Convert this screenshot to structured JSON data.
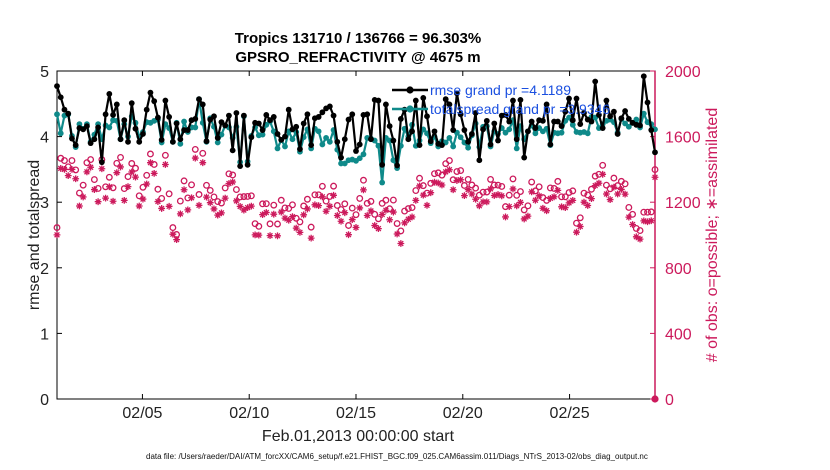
{
  "chart_data": {
    "type": "line",
    "title": "Tropics 131710 / 136766 = 96.303%",
    "subtitle": "GPSRO_REFRACTIVITY @ 4675 m",
    "xlabel": "Feb.01,2013 00:00:00 start",
    "ylabel_left": "rmse and totalspread",
    "ylabel_right": "# of obs: o=possible; ∗=assimilated",
    "footnote": "data file: /Users/raeder/DAI/ATM_forcXX/CAM6_setup/f.e21.FHIST_BGC.f09_025.CAM6assim.011/Diags_NTrS_2013-02/obs_diag_output.nc",
    "x_range": [
      1.0,
      29.0
    ],
    "ylim_left": [
      0,
      5
    ],
    "ylim_right": [
      0,
      2000
    ],
    "x_ticks": [
      5,
      10,
      15,
      20,
      25
    ],
    "x_tick_labels": [
      "02/05",
      "02/10",
      "02/15",
      "02/20",
      "02/25"
    ],
    "y_left_ticks": [
      "0",
      "1",
      "2",
      "3",
      "4",
      "5"
    ],
    "y_right_ticks": [
      "0",
      "400",
      "800",
      "1200",
      "1600",
      "2000"
    ],
    "legend": {
      "position": "top-right",
      "entries": [
        "rmse grand pr =4.1189",
        "totalspread grand pr =3.9346"
      ]
    },
    "colors": {
      "rmse": "#000000",
      "totalspread": "#0f8a8a",
      "obs": "#cc1a5c",
      "legend_text": "#1a4fe0"
    },
    "series": [
      {
        "name": "rmse",
        "axis": "left",
        "values": [
          4.77,
          4.6,
          4.41,
          4.35,
          3.97,
          3.87,
          4.13,
          4.11,
          4.16,
          3.9,
          3.96,
          4.14,
          3.61,
          4.34,
          4.65,
          4.33,
          4.49,
          3.96,
          4.25,
          3.92,
          4.51,
          4.12,
          3.92,
          4.04,
          4.41,
          4.67,
          4.54,
          4.29,
          3.95,
          4.55,
          4.3,
          3.92,
          4.2,
          3.96,
          4.1,
          4.1,
          4.25,
          4.27,
          4.57,
          4.49,
          3.93,
          4.26,
          4.31,
          3.98,
          4.22,
          4.17,
          4.32,
          3.79,
          4.36,
          3.55,
          4.32,
          3.57,
          3.99,
          4.21,
          4.2,
          4.1,
          4.33,
          4.25,
          4.3,
          4.04,
          3.95,
          4.0,
          4.41,
          4.11,
          4.15,
          3.81,
          4.2,
          4.34,
          3.87,
          4.28,
          4.3,
          4.37,
          4.43,
          4.46,
          4.32,
          3.92,
          3.68,
          3.96,
          4.26,
          4.34,
          3.78,
          3.88,
          4.33,
          4.34,
          3.96,
          4.56,
          4.55,
          3.57,
          4.49,
          4.16,
          3.94,
          3.56,
          4.27,
          4.41,
          3.96,
          4.08,
          4.55,
          3.87,
          4.59,
          4.31,
          3.93,
          4.08,
          3.89,
          3.87,
          4.57,
          4.49,
          4.1,
          4.66,
          4.34,
          4.1,
          3.92,
          4.04,
          4.36,
          3.64,
          4.11,
          4.24,
          3.88,
          4.2,
          3.94,
          4.32,
          4.33,
          4.23,
          4.55,
          3.96,
          4.56,
          3.68,
          4.08,
          4.23,
          4.13,
          4.25,
          4.24,
          4.49,
          3.88,
          4.23,
          4.23,
          4.16,
          4.38,
          4.58,
          4.25,
          4.58,
          4.19,
          4.36,
          4.26,
          4.23,
          4.84,
          4.33,
          4.13,
          4.55,
          4.31,
          4.38,
          4.04,
          4.28,
          4.39,
          4.27,
          4.21,
          4.18,
          4.17,
          4.92,
          4.52,
          4.1,
          3.76
        ]
      },
      {
        "name": "totalspread",
        "axis": "left",
        "values": [
          4.34,
          4.05,
          4.32,
          4.34,
          4.01,
          3.84,
          4.19,
          4.12,
          4.19,
          3.92,
          4.03,
          4.19,
          3.96,
          4.17,
          4.14,
          4.25,
          4.24,
          3.96,
          4.19,
          4.0,
          4.31,
          4.21,
          4.0,
          4.07,
          4.22,
          4.21,
          4.24,
          4.26,
          3.91,
          4.19,
          4.13,
          3.92,
          4.21,
          3.89,
          4.23,
          4.07,
          4.14,
          4.14,
          4.57,
          4.21,
          3.92,
          4.28,
          4.15,
          3.91,
          4.03,
          4.17,
          4.14,
          3.98,
          4.15,
          3.61,
          4.31,
          3.62,
          4.01,
          4.14,
          4.02,
          4.03,
          4.18,
          4.23,
          4.08,
          3.82,
          3.95,
          3.85,
          4.08,
          3.96,
          4.07,
          3.77,
          3.99,
          4.11,
          3.82,
          4.12,
          4.08,
          3.88,
          3.98,
          3.92,
          4.1,
          3.8,
          3.59,
          3.59,
          3.64,
          3.65,
          3.63,
          3.67,
          3.73,
          3.98,
          3.97,
          3.94,
          3.86,
          3.3,
          3.98,
          3.94,
          3.64,
          3.52,
          3.86,
          4.12,
          4.0,
          4.18,
          3.86,
          3.94,
          4.11,
          4.05,
          3.9,
          4.0,
          3.85,
          3.93,
          3.91,
          3.98,
          3.85,
          4.06,
          3.99,
          3.91,
          3.83,
          4.02,
          4.2,
          3.84,
          4.15,
          4.16,
          3.85,
          4.08,
          4.04,
          4.13,
          4.06,
          4.11,
          4.25,
          3.82,
          4.16,
          3.96,
          4.08,
          4.17,
          4.05,
          4.13,
          4.08,
          4.12,
          3.87,
          4.06,
          4.05,
          4.06,
          4.24,
          4.29,
          4.18,
          4.07,
          4.06,
          4.07,
          4.05,
          4.3,
          4.29,
          4.13,
          4.19,
          4.24,
          4.26,
          4.22,
          4.06,
          4.27,
          4.2,
          4.15,
          4.21,
          4.26,
          4.14,
          4.35,
          4.22,
          4.19,
          4.11
        ]
      },
      {
        "name": "possible",
        "axis": "right",
        "marker": "circle",
        "values": [
          1045,
          1468,
          1454,
          1416,
          1454,
          1397,
          1256,
          1304,
          1441,
          1460,
          1338,
          1284,
          1460,
          1294,
          1352,
          1288,
          1437,
          1473,
          1283,
          1356,
          1436,
          1407,
          1239,
          1291,
          1364,
          1494,
          1430,
          1279,
          1223,
          1486,
          1251,
          1045,
          1003,
          1207,
          1330,
          1226,
          1306,
          1522,
          1247,
          1498,
          1303,
          1272,
          1232,
          1204,
          1195,
          1287,
          1373,
          1366,
          1277,
          1232,
          1234,
          1235,
          1239,
          1069,
          1053,
          1190,
          1191,
          1068,
          1182,
          1067,
          1212,
          1165,
          1162,
          1184,
          1102,
          1080,
          1177,
          1218,
          1048,
          1245,
          1245,
          1297,
          1207,
          1235,
          1298,
          1180,
          1155,
          1190,
          1058,
          1164,
          1124,
          1223,
          1334,
          1193,
          1205,
          1126,
          1099,
          1193,
          1212,
          1160,
          1213,
          1070,
          1025,
          1146,
          1161,
          1167,
          1271,
          1346,
          1301,
          1255,
          1315,
          1374,
          1379,
          1365,
          1435,
          1454,
          1337,
          1387,
          1393,
          1302,
          1339,
          1305,
          1286,
          1243,
          1261,
          1262,
          1339,
          1305,
          1304,
          1296,
          1173,
          1243,
          1342,
          1242,
          1265,
          1153,
          1178,
          1323,
          1269,
          1294,
          1228,
          1211,
          1287,
          1284,
          1327,
          1233,
          1233,
          1259,
          1269,
          1072,
          1105,
          1255,
          1244,
          1279,
          1359,
          1370,
          1425,
          1304,
          1282,
          1347,
          1301,
          1327,
          1312,
          1168,
          1126,
          1040,
          1027,
          1139,
          1139,
          1141,
          1399
        ]
      },
      {
        "name": "assimilated",
        "axis": "right",
        "marker": "star",
        "values": [
          1001,
          1406,
          1400,
          1362,
          1400,
          1343,
          1177,
          1232,
          1385,
          1413,
          1277,
          1203,
          1404,
          1225,
          1294,
          1206,
          1380,
          1415,
          1211,
          1295,
          1384,
          1353,
          1177,
          1219,
          1311,
          1441,
          1376,
          1204,
          1162,
          1430,
          1175,
          1005,
          972,
          1129,
          1276,
          1153,
          1227,
          1469,
          1181,
          1441,
          1231,
          1197,
          1159,
          1121,
          1135,
          1225,
          1314,
          1323,
          1208,
          1174,
          1152,
          1167,
          1176,
          1001,
          999,
          1124,
          1137,
          996,
          1127,
          995,
          1140,
          1103,
          1090,
          1112,
          1042,
          1016,
          1123,
          1159,
          981,
          1184,
          1179,
          1233,
          1145,
          1175,
          1242,
          1119,
          1084,
          1136,
          1002,
          1094,
          1046,
          1165,
          1275,
          1119,
          1147,
          1058,
          1039,
          1125,
          1151,
          1093,
          1140,
          1006,
          948,
          1074,
          1096,
          1110,
          1211,
          1299,
          1243,
          1181,
          1258,
          1322,
          1317,
          1305,
          1385,
          1398,
          1276,
          1332,
          1337,
          1240,
          1277,
          1250,
          1218,
          1178,
          1202,
          1202,
          1281,
          1241,
          1247,
          1239,
          1110,
          1173,
          1281,
          1178,
          1199,
          1098,
          1115,
          1263,
          1212,
          1239,
          1163,
          1148,
          1223,
          1233,
          1272,
          1172,
          1167,
          1196,
          1211,
          1017,
          1052,
          1200,
          1180,
          1222,
          1301,
          1316,
          1370,
          1250,
          1216,
          1292,
          1250,
          1278,
          1249,
          1109,
          1064,
          989,
          975,
          1086,
          1081,
          1087,
          1352
        ]
      }
    ]
  }
}
